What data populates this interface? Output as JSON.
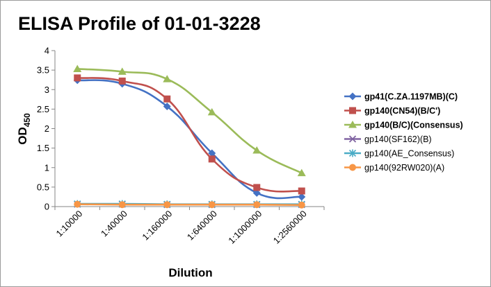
{
  "chart_data": {
    "type": "line",
    "title": "ELISA Profile of 01-01-3228",
    "xlabel": "Dilution",
    "ylabel_main": "OD",
    "ylabel_sub": "450",
    "categories": [
      "1:10000",
      "1:40000",
      "1:160000",
      "1:640000",
      "1:1000000",
      "1:2560000"
    ],
    "ylim": [
      0,
      4
    ],
    "yticks": [
      "0",
      "0.5",
      "1",
      "1.5",
      "2",
      "2.5",
      "3",
      "3.5",
      "4"
    ],
    "grid": false,
    "legend_position": "right",
    "series": [
      {
        "name": "gp41(C.ZA.1197MB)(C)",
        "values": [
          3.24,
          3.15,
          2.57,
          1.37,
          0.35,
          0.25
        ],
        "color": "#4472c4",
        "marker": "diamond",
        "bold": true
      },
      {
        "name": "gp140(CN54)(B/C')",
        "values": [
          3.3,
          3.22,
          2.76,
          1.22,
          0.49,
          0.4
        ],
        "color": "#c0504d",
        "marker": "square",
        "bold": true
      },
      {
        "name": "gp140(B/C)(Consensus)",
        "values": [
          3.53,
          3.46,
          3.27,
          2.42,
          1.44,
          0.86
        ],
        "color": "#9bbb59",
        "marker": "triangle",
        "bold": true
      },
      {
        "name": "gp140(SF162)(B)",
        "values": [
          0.06,
          0.06,
          0.05,
          0.05,
          0.05,
          0.05
        ],
        "color": "#8064a2",
        "marker": "x",
        "bold": false
      },
      {
        "name": "gp140(AE_Consensus)",
        "values": [
          0.07,
          0.07,
          0.06,
          0.06,
          0.06,
          0.06
        ],
        "color": "#4bacc6",
        "marker": "asterisk",
        "bold": false
      },
      {
        "name": "gp140(92RW020)(A)",
        "values": [
          0.06,
          0.05,
          0.05,
          0.05,
          0.05,
          0.04
        ],
        "color": "#f79646",
        "marker": "circle",
        "bold": false
      }
    ]
  }
}
